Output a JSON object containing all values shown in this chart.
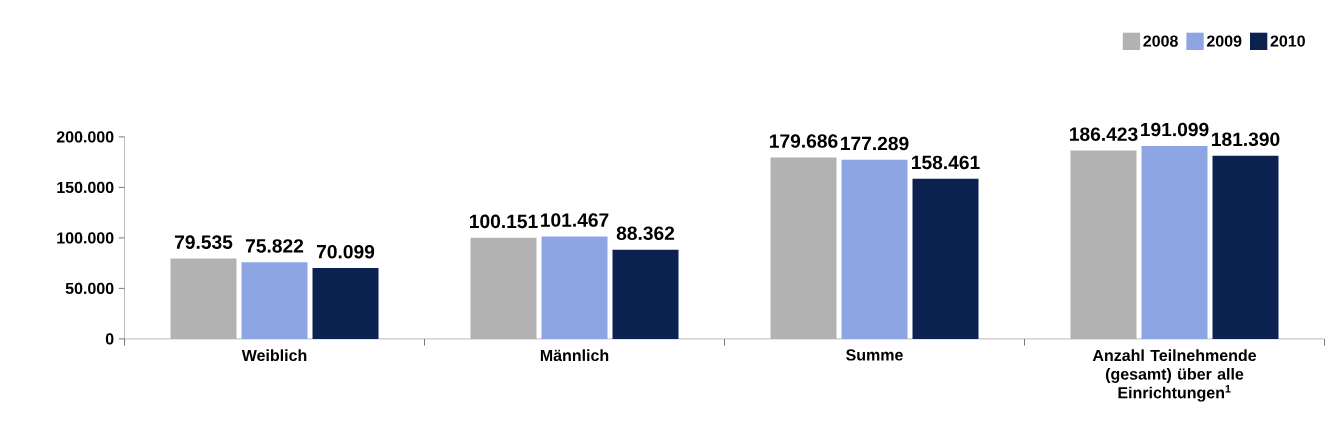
{
  "chart_data": {
    "type": "bar",
    "categories": [
      "Weiblich",
      "Männlich",
      "Summe",
      "Anzahl Teilnehmende (gesamt) über alle Einrichtungen$^{1}$"
    ],
    "series": [
      {
        "name": "2008",
        "color": "#b2b2b2",
        "values": [
          79535,
          100151,
          179686,
          186423
        ],
        "value_labels": [
          "79.535",
          "100.151",
          "179.686",
          "186.423"
        ]
      },
      {
        "name": "2009",
        "color": "#8ea5e4",
        "values": [
          75822,
          101467,
          177289,
          191099
        ],
        "value_labels": [
          "75.822",
          "101.467",
          "177.289",
          "191.099"
        ]
      },
      {
        "name": "2010",
        "color": "#0b2250",
        "values": [
          70099,
          88362,
          158461,
          181390
        ],
        "value_labels": [
          "70.099",
          "88.362",
          "158.461",
          "181.390"
        ]
      }
    ],
    "ylim": [
      0,
      200000
    ],
    "yticks": [
      {
        "value": 0,
        "label": "0"
      },
      {
        "value": 50000,
        "label": "50.000"
      },
      {
        "value": 100000,
        "label": "100.000"
      },
      {
        "value": 150000,
        "label": "150.000"
      },
      {
        "value": 200000,
        "label": "200.000"
      }
    ],
    "legend": "top right",
    "grid": false
  }
}
